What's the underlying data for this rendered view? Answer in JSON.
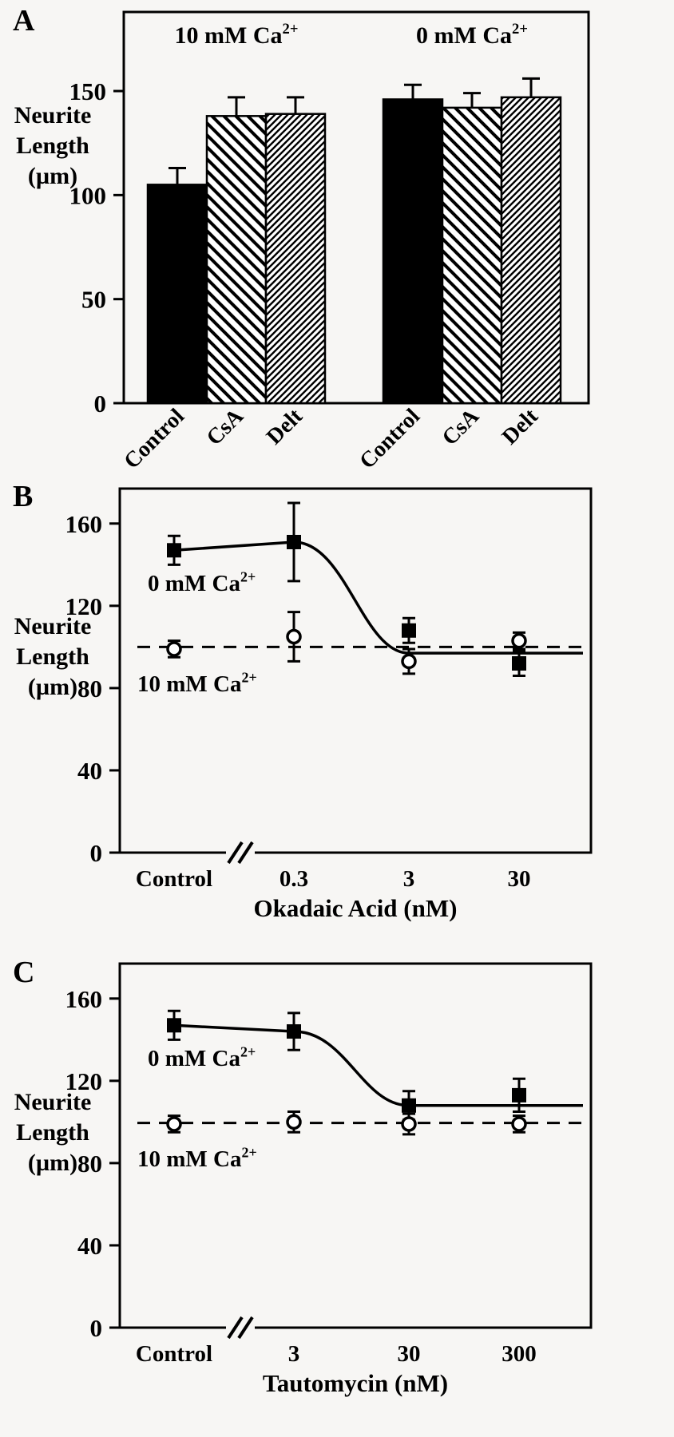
{
  "labels": {
    "ylabel_lines": [
      "Neurite",
      "Length",
      "(µm)"
    ]
  },
  "colors": {
    "ink": "#000000",
    "background": "#f7f6f4"
  },
  "chart_data": [
    {
      "panel": "A",
      "type": "bar",
      "ylabel": "Neurite Length (µm)",
      "ymax": 188,
      "yticks": [
        0,
        50,
        100,
        150
      ],
      "groups": [
        {
          "label": "10 mM Ca2+",
          "categories": [
            "Control",
            "CsA",
            "Delt"
          ],
          "values": [
            105,
            138,
            139
          ],
          "errors": [
            8,
            9,
            8
          ],
          "fills": [
            "solid",
            "hatch-wide",
            "hatch-dense"
          ]
        },
        {
          "label": "0 mM Ca2+",
          "categories": [
            "Control",
            "CsA",
            "Delt"
          ],
          "values": [
            146,
            142,
            147
          ],
          "errors": [
            7,
            7,
            9
          ],
          "fills": [
            "solid",
            "hatch-wide",
            "hatch-dense"
          ]
        }
      ]
    },
    {
      "panel": "B",
      "type": "line",
      "xlabel": "Okadaic Acid (nM)",
      "ylabel": "Neurite Length (µm)",
      "ymax": 177,
      "yticks": [
        0,
        40,
        80,
        120,
        160
      ],
      "categories": [
        "Control",
        "0.3",
        "3",
        "30"
      ],
      "axis_break_after_index": 0,
      "series": [
        {
          "name": "0 mM Ca2+",
          "marker": "filled-square",
          "line_style": "solid-sigmoid",
          "values": [
            147,
            151,
            108,
            92
          ],
          "errors": [
            7,
            19,
            6,
            6
          ],
          "plateau": 97
        },
        {
          "name": "10 mM Ca2+",
          "marker": "open-circle",
          "line_style": "dashed-horizontal",
          "values": [
            99,
            105,
            93,
            103
          ],
          "errors": [
            4,
            12,
            6,
            4
          ],
          "dash_level": 100
        }
      ]
    },
    {
      "panel": "C",
      "type": "line",
      "xlabel": "Tautomycin (nM)",
      "ylabel": "Neurite Length (µm)",
      "ymax": 177,
      "yticks": [
        0,
        40,
        80,
        120,
        160
      ],
      "categories": [
        "Control",
        "3",
        "30",
        "300"
      ],
      "axis_break_after_index": 0,
      "series": [
        {
          "name": "0 mM Ca2+",
          "marker": "filled-square",
          "line_style": "solid-sigmoid",
          "values": [
            147,
            144,
            108,
            113
          ],
          "errors": [
            7,
            9,
            7,
            8
          ],
          "plateau": 108
        },
        {
          "name": "10 mM Ca2+",
          "marker": "open-circle",
          "line_style": "dashed-horizontal",
          "values": [
            99,
            100,
            99,
            99
          ],
          "errors": [
            4,
            5,
            5,
            4
          ],
          "dash_level": 99.5
        }
      ]
    }
  ]
}
